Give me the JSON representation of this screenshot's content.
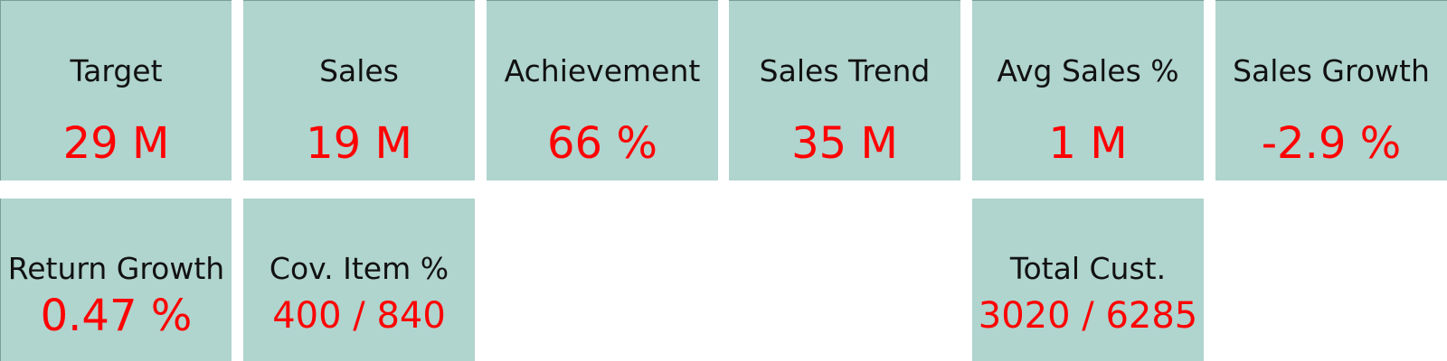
{
  "accent_color": "#b0d4ce",
  "value_color": "#ff0000",
  "cards": [
    {
      "label": "Target",
      "value": "29 M"
    },
    {
      "label": "Sales",
      "value": "19 M"
    },
    {
      "label": "Achievement",
      "value": "66 %"
    },
    {
      "label": "Sales Trend",
      "value": "35 M"
    },
    {
      "label": "Avg Sales %",
      "value": "1 M"
    },
    {
      "label": "Sales Growth",
      "value": "-2.9 %"
    },
    {
      "label": "Return Growth",
      "value": "0.47 %"
    },
    {
      "label": "Cov. Item %",
      "value": "400 / 840"
    },
    {
      "label": "Total Cust.",
      "value": "3020 / 6285"
    }
  ]
}
